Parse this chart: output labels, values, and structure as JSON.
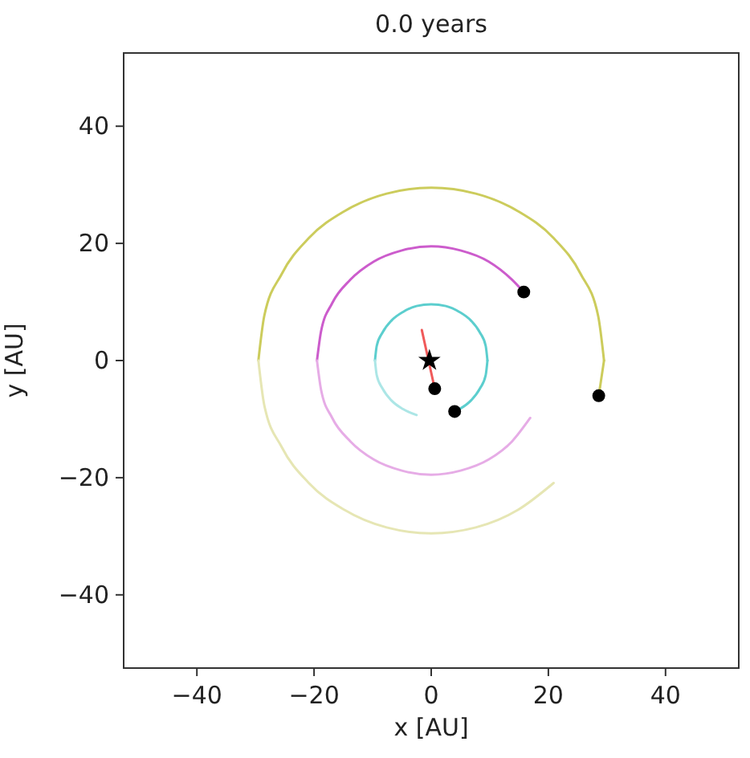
{
  "chart_data": {
    "type": "line",
    "title": "0.0 years",
    "xlabel": "x [AU]",
    "ylabel": "y [AU]",
    "xlim": [
      -52.5,
      52.5
    ],
    "ylim": [
      -52.5,
      52.5
    ],
    "xticks": [
      -40,
      -20,
      0,
      20,
      40
    ],
    "yticks": [
      -40,
      -20,
      0,
      20,
      40
    ],
    "grid": false,
    "series": [
      {
        "color": "#5ccece",
        "x": [
          -9.6,
          -9.3,
          -8.3,
          -6.8,
          -4.8,
          -2.5,
          0,
          2.5,
          4.8,
          6.8,
          8.3,
          9.3,
          9.6
        ],
        "values": [
          0,
          2.5,
          4.8,
          6.8,
          8.3,
          9.3,
          9.6,
          9.3,
          8.3,
          6.8,
          4.8,
          2.5,
          0
        ]
      },
      {
        "color": "#ace6e6",
        "x": [
          -9.6,
          -9.3,
          -8.3,
          -6.8,
          -4.8,
          -2.5
        ],
        "values": [
          0,
          -2.5,
          -4.8,
          -6.8,
          -8.3,
          -9.3
        ]
      },
      {
        "color": "#5ccece",
        "x": [
          4.0,
          4.8,
          6.8,
          8.3,
          9.3,
          9.6
        ],
        "values": [
          -8.7,
          -8.3,
          -6.8,
          -4.8,
          -2.5,
          0
        ]
      },
      {
        "color": "#cc5ccc",
        "x": [
          -19.5,
          -18.8,
          -16.9,
          -13.8,
          -9.8,
          -5.0,
          0,
          5.0,
          9.8,
          13.8,
          15.8
        ],
        "values": [
          0,
          5.0,
          9.8,
          13.8,
          16.9,
          18.8,
          19.5,
          18.8,
          16.9,
          13.8,
          11.7
        ]
      },
      {
        "color": "#e6ace6",
        "x": [
          -19.5,
          -18.8,
          -16.9,
          -13.8,
          -9.8,
          -5.0,
          0,
          5.0,
          9.8,
          13.8,
          16.9
        ],
        "values": [
          0,
          -5.0,
          -9.8,
          -13.8,
          -16.9,
          -18.8,
          -19.5,
          -18.8,
          -16.9,
          -13.8,
          -9.8
        ]
      },
      {
        "color": "#cccc5c",
        "x": [
          -29.5,
          -28.5,
          -25.5,
          -20.9,
          -14.8,
          -7.6,
          0,
          7.6,
          14.8,
          20.9,
          25.5,
          28.5,
          29.5
        ],
        "values": [
          0,
          7.6,
          14.8,
          20.9,
          25.5,
          28.5,
          29.5,
          28.5,
          25.5,
          20.9,
          14.8,
          7.6,
          0
        ]
      },
      {
        "color": "#e6e6b4",
        "x": [
          -29.5,
          -28.5,
          -25.5,
          -20.9,
          -14.8,
          -7.6,
          0,
          7.6,
          14.8,
          20.9
        ],
        "values": [
          0,
          -7.6,
          -14.8,
          -20.9,
          -25.5,
          -28.5,
          -29.5,
          -28.5,
          -25.5,
          -20.9
        ]
      },
      {
        "color": "#cccc5c",
        "x": [
          28.6,
          29.5
        ],
        "values": [
          -6.0,
          0
        ]
      },
      {
        "color": "#f05a5a",
        "x": [
          -1.6,
          0.6
        ],
        "values": [
          5.2,
          -4.8
        ]
      },
      {
        "type": "scatter",
        "color": "#000000",
        "marker": "circle",
        "x": [
          0.6,
          4.0,
          15.8,
          28.6
        ],
        "values": [
          -4.8,
          -8.7,
          11.7,
          -6.0
        ]
      },
      {
        "type": "scatter",
        "color": "#000000",
        "marker": "star",
        "x": [
          -0.3
        ],
        "values": [
          0
        ]
      }
    ]
  }
}
